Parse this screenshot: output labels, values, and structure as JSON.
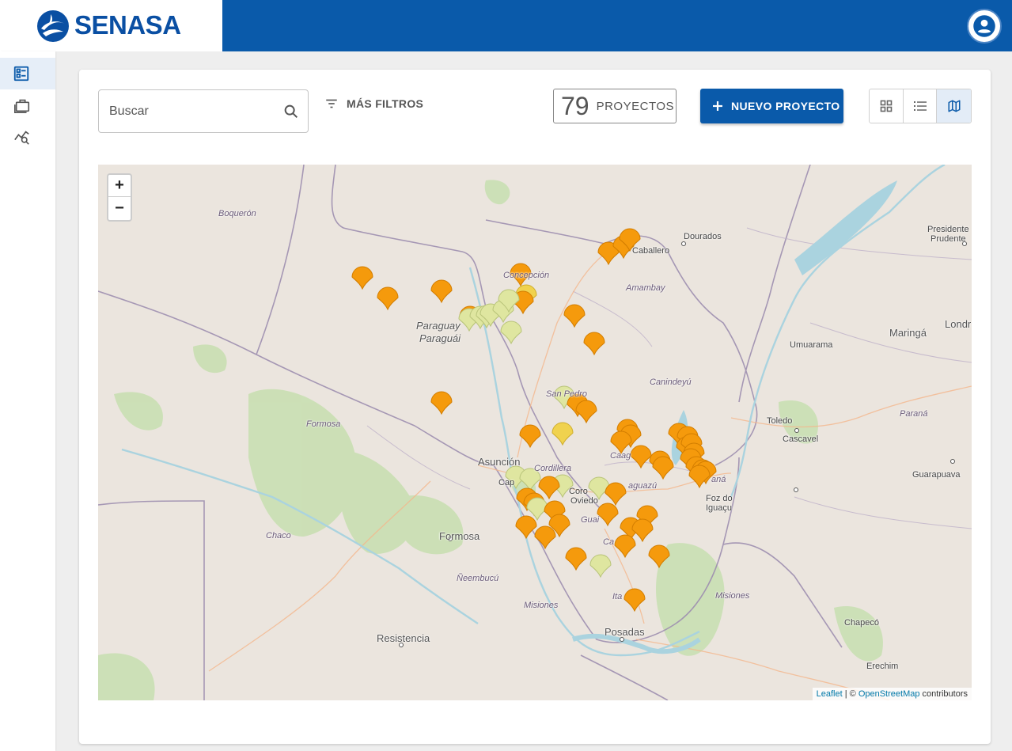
{
  "brand": {
    "name": "SENASA",
    "colors": {
      "primary": "#0a5aaa",
      "logo_text": "#0a4fa3"
    }
  },
  "header": {
    "user_icon": "account-circle-icon"
  },
  "sidebar": {
    "items": [
      {
        "icon": "dashboard-icon",
        "active": true
      },
      {
        "icon": "briefcase-icon",
        "active": false
      },
      {
        "icon": "analytics-search-icon",
        "active": false
      }
    ]
  },
  "toolbar": {
    "search_placeholder": "Buscar",
    "filters_label": "MÁS FILTROS",
    "project_count": "79",
    "project_count_label": "PROYECTOS",
    "new_project_label": "NUEVO PROYECTO",
    "views": [
      {
        "icon": "grid-view-icon",
        "active": false
      },
      {
        "icon": "list-view-icon",
        "active": false
      },
      {
        "icon": "map-view-icon",
        "active": true
      }
    ]
  },
  "map": {
    "zoom_in": "+",
    "zoom_out": "−",
    "marker_colors": {
      "orange": "#f59a0c",
      "yellow": "#f0d24e",
      "light": "#dfe6a0"
    },
    "labels": {
      "boqueron": "Boquerón",
      "dourados": "Dourados",
      "caballero": "Caballero",
      "concepcion": "Concepción",
      "amambay": "Amambay",
      "paraguay1": "Paraguay",
      "paraguay2": "Paraguái",
      "presidente1": "Presidente",
      "presidente2": "Prudente",
      "londrina": "Londr",
      "maringa": "Maringá",
      "umuarama": "Umuarama",
      "san_pedro": "San Pedro",
      "canindeyu": "Canindeyú",
      "toledo": "Toledo",
      "cascavel": "Cascavel",
      "parana": "Paraná",
      "formosa_region": "Formosa",
      "asuncion": "Asunción",
      "capital": "Cap",
      "cordillera": "Cordillera",
      "caaguazu": "aguazú",
      "caag": "Caag",
      "coronel1": "Coro",
      "coronel2": "Oviedo",
      "guaira": "Guai",
      "foz1": "Foz do",
      "foz2": "Iguaçu",
      "guarapuava": "Guarapuava",
      "parana_river": "aná",
      "chaco": "Chaco",
      "formosa": "Formosa",
      "caazapa": "Ca",
      "neembucu": "Ñeembucú",
      "misiones_py": "Misiones",
      "itapua": "Ita",
      "misiones_ar": "Misiones",
      "chapeco": "Chapecó",
      "resistencia": "Resistencia",
      "posadas": "Posadas",
      "erechim": "Erechim"
    },
    "attribution": {
      "leaflet": "Leaflet",
      "sep": " | © ",
      "osm": "OpenStreetMap",
      "suffix": " contributors"
    }
  }
}
